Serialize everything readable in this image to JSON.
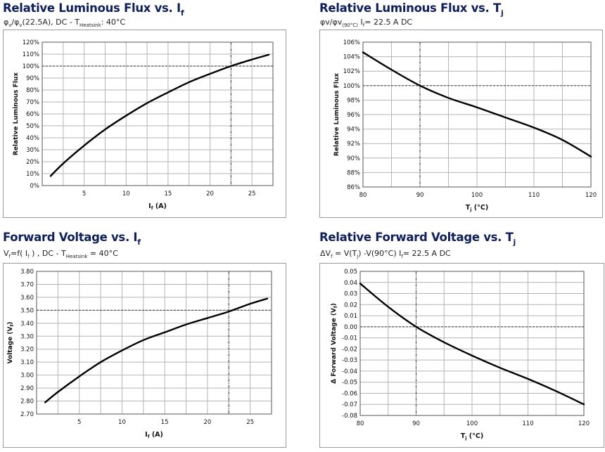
{
  "panels": [
    {
      "title": {
        "main": "Relative Luminous Flux vs. I",
        "sub": "f"
      },
      "subtitle": {
        "a": "φ",
        "a_sub": "v",
        "b": "/φ",
        "b_sub": "v",
        "c": "(22.5A), DC - T",
        "c_sub": "Heatsink",
        "d": ": 40°C"
      }
    },
    {
      "title": {
        "main": "Relative Luminous Flux  vs. T",
        "sub": "j"
      },
      "subtitle": {
        "a": "φv/φv",
        "a_sub": "(90°C)",
        "b": "  I",
        "b_sub": "f",
        "c": "= 22.5 A DC",
        "c_sub": "",
        "d": ""
      }
    },
    {
      "title": {
        "main": "Forward Voltage vs. I",
        "sub": "f"
      },
      "subtitle": {
        "a": "V",
        "a_sub": "f",
        "b": "=f( I",
        "b_sub": "f",
        "c": " ) , DC - T",
        "c_sub": "Heatsink",
        "d": " = 40°C"
      }
    },
    {
      "title": {
        "main": "Relative Forward Voltage vs. T",
        "sub": "j"
      },
      "subtitle": {
        "a": "ΔV",
        "a_sub": "f",
        "b": " = V(T",
        "b_sub": "j",
        "c": ") -V(90°C)  I",
        "c_sub": "f",
        "d": "= 22.5 A DC"
      }
    }
  ],
  "chart_data": [
    {
      "type": "line",
      "xlabel": "I",
      "xlabel_sub": "f",
      "xlabel_unit": " (A)",
      "ylabel": "Relative Luminous Flux",
      "xlim": [
        0,
        27.5
      ],
      "ylim": [
        0,
        120
      ],
      "xticks": [
        5,
        10,
        15,
        20,
        25
      ],
      "xtick_labels": [
        "5",
        "10",
        "15",
        "20",
        "25"
      ],
      "yticks": [
        0,
        10,
        20,
        30,
        40,
        50,
        60,
        70,
        80,
        90,
        100,
        110,
        120
      ],
      "ytick_labels": [
        "0%",
        "10%",
        "20%",
        "30%",
        "40%",
        "50%",
        "60%",
        "70%",
        "80%",
        "90%",
        "100%",
        "110%",
        "120%"
      ],
      "grid": true,
      "ref_lines": {
        "x": 22.5,
        "y": 100
      },
      "series": [
        {
          "x": [
            1,
            2.5,
            5,
            7.5,
            10,
            12.5,
            15,
            17.5,
            20,
            22.5,
            25,
            27
          ],
          "y": [
            8,
            18.5,
            33.5,
            47,
            58.5,
            69,
            78,
            86.5,
            93.5,
            100,
            105.5,
            109.5
          ]
        }
      ]
    },
    {
      "type": "line",
      "xlabel": "T",
      "xlabel_sub": "j",
      "xlabel_unit": " (°C)",
      "ylabel": "Relative Luminous Flux",
      "xlim": [
        80,
        120
      ],
      "ylim": [
        86,
        106
      ],
      "xticks": [
        80,
        90,
        100,
        110,
        120
      ],
      "xtick_labels": [
        "80",
        "90",
        "100",
        "110",
        "120"
      ],
      "yticks": [
        86,
        88,
        90,
        92,
        94,
        96,
        98,
        100,
        102,
        104,
        106
      ],
      "ytick_labels": [
        "86%",
        "88%",
        "90%",
        "92%",
        "94%",
        "96%",
        "98%",
        "100%",
        "102%",
        "104%",
        "106%"
      ],
      "grid": true,
      "ref_lines": {
        "x": 90,
        "y": 100
      },
      "series": [
        {
          "x": [
            80,
            85,
            90,
            95,
            100,
            105,
            110,
            115,
            120
          ],
          "y": [
            104.6,
            102.2,
            100,
            98.3,
            97,
            95.6,
            94.2,
            92.5,
            90.2
          ]
        }
      ]
    },
    {
      "type": "line",
      "xlabel": "I",
      "xlabel_sub": "f",
      "xlabel_unit": " (A)",
      "ylabel": "Voltage (V",
      "ylabel_sub": "f",
      "ylabel_end": ")",
      "xlim": [
        0,
        27.5
      ],
      "ylim": [
        2.7,
        3.8
      ],
      "xticks": [
        5,
        10,
        15,
        20,
        25
      ],
      "xtick_labels": [
        "5",
        "10",
        "15",
        "20",
        "25"
      ],
      "yticks": [
        2.7,
        2.8,
        2.9,
        3.0,
        3.1,
        3.2,
        3.3,
        3.4,
        3.5,
        3.6,
        3.7,
        3.8
      ],
      "ytick_labels": [
        "2.70",
        "2.80",
        "2.90",
        "3.00",
        "3.10",
        "3.20",
        "3.30",
        "3.40",
        "3.50",
        "3.60",
        "3.70",
        "3.80"
      ],
      "grid": true,
      "ref_lines": {
        "x": 22.5,
        "y": 3.5
      },
      "series": [
        {
          "x": [
            1,
            2.5,
            5,
            7.5,
            10,
            12.5,
            15,
            17.5,
            20,
            22.5,
            25,
            27
          ],
          "y": [
            2.79,
            2.87,
            2.99,
            3.1,
            3.19,
            3.27,
            3.33,
            3.39,
            3.44,
            3.49,
            3.55,
            3.59
          ]
        }
      ]
    },
    {
      "type": "line",
      "xlabel": "T",
      "xlabel_sub": "j",
      "xlabel_unit": " (°C)",
      "ylabel": "Δ Forward Voltage (V",
      "ylabel_sub": "f",
      "ylabel_end": ")",
      "xlim": [
        80,
        120
      ],
      "ylim": [
        -0.08,
        0.05
      ],
      "xticks": [
        80,
        90,
        100,
        110,
        120
      ],
      "xtick_labels": [
        "80",
        "90",
        "100",
        "110",
        "120"
      ],
      "yticks": [
        -0.08,
        -0.07,
        -0.06,
        -0.05,
        -0.04,
        -0.03,
        -0.02,
        -0.01,
        0,
        0.01,
        0.02,
        0.03,
        0.04,
        0.05
      ],
      "ytick_labels": [
        "-0.08",
        "-0.07",
        "-0.06",
        "-0.05",
        "-0.04",
        "-0.03",
        "-0.02",
        "-0.01",
        "0.00",
        "0.01",
        "0.02",
        "0.03",
        "0.04",
        "0.05"
      ],
      "grid": true,
      "ref_lines": {
        "x": 90,
        "y": 0
      },
      "series": [
        {
          "x": [
            80,
            85,
            90,
            95,
            100,
            105,
            110,
            115,
            120
          ],
          "y": [
            0.039,
            0.018,
            0,
            -0.014,
            -0.026,
            -0.037,
            -0.047,
            -0.058,
            -0.07
          ]
        }
      ]
    }
  ]
}
